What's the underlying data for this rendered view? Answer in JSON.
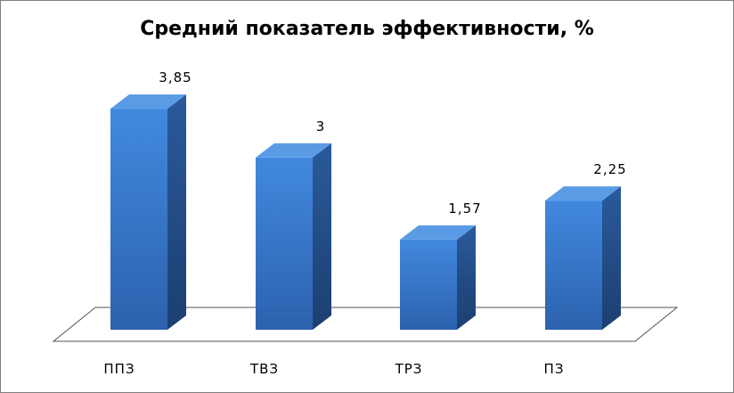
{
  "chart_data": {
    "type": "bar",
    "title": "Средний показатель эффективности, %",
    "categories": [
      "ППЗ",
      "ТВЗ",
      "ТРЗ",
      "ПЗ"
    ],
    "values": [
      3.85,
      3,
      1.57,
      2.25
    ],
    "value_labels": [
      "3,85",
      "3",
      "1,57",
      "2,25"
    ],
    "ylim": [
      0,
      4.2
    ],
    "grid": false,
    "legend": "none",
    "style": "3d-column"
  },
  "colors": {
    "bar_front_top": "#3f86dc",
    "bar_front_bottom": "#2f67b6",
    "bar_side": "#244f8c",
    "bar_top": "#5a9be6",
    "floor_stroke": "#555555"
  }
}
